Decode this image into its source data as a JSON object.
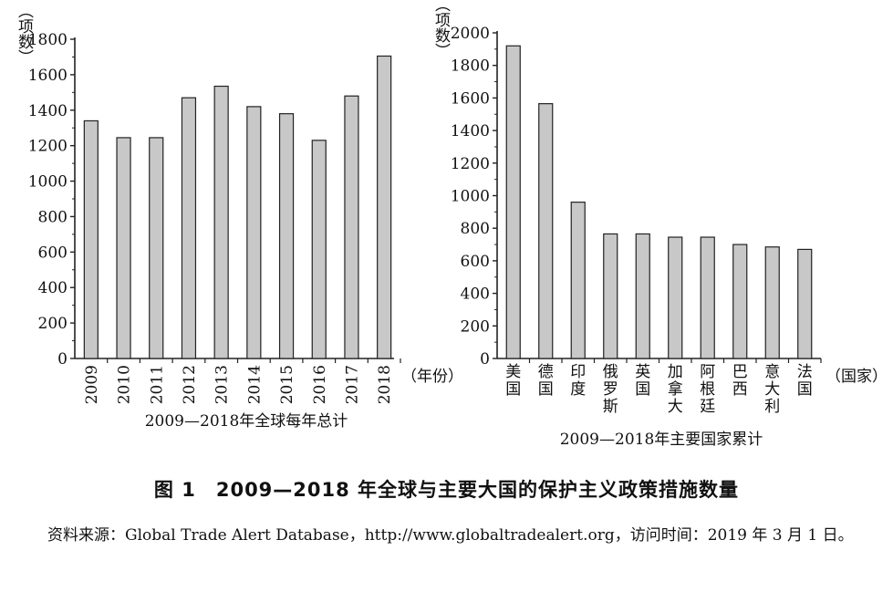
{
  "chart_data": [
    {
      "type": "bar",
      "title": "2009—2018年全球每年总计",
      "ylabel": "（项数）",
      "xlabel": "（年份）",
      "categories": [
        "2009",
        "2010",
        "2011",
        "2012",
        "2013",
        "2014",
        "2015",
        "2016",
        "2017",
        "2018"
      ],
      "values": [
        1340,
        1245,
        1245,
        1470,
        1535,
        1420,
        1380,
        1230,
        1480,
        1705
      ],
      "ylim": [
        0,
        1800
      ],
      "yticks": [
        0,
        200,
        400,
        600,
        800,
        1000,
        1200,
        1400,
        1600,
        1800
      ],
      "bar_color": "#c8c8c8",
      "grid": false
    },
    {
      "type": "bar",
      "title": "2009—2018年主要国家累计",
      "ylabel": "（项数）",
      "xlabel": "（国家）",
      "categories": [
        "美国",
        "德国",
        "印度",
        "俄罗斯",
        "英国",
        "加拿大",
        "阿根廷",
        "巴西",
        "意大利",
        "法国"
      ],
      "values": [
        1920,
        1565,
        960,
        765,
        765,
        745,
        745,
        700,
        685,
        670
      ],
      "ylim": [
        0,
        2000
      ],
      "yticks": [
        0,
        200,
        400,
        600,
        800,
        1000,
        1200,
        1400,
        1600,
        1800,
        2000
      ],
      "bar_color": "#c8c8c8",
      "grid": false
    }
  ],
  "caption": "图 1　2009—2018 年全球与主要大国的保护主义政策措施数量",
  "source_note": "资料来源：Global Trade Alert Database，http://www.globaltradealert.org，访问时间：2019 年 3 月 1 日。"
}
